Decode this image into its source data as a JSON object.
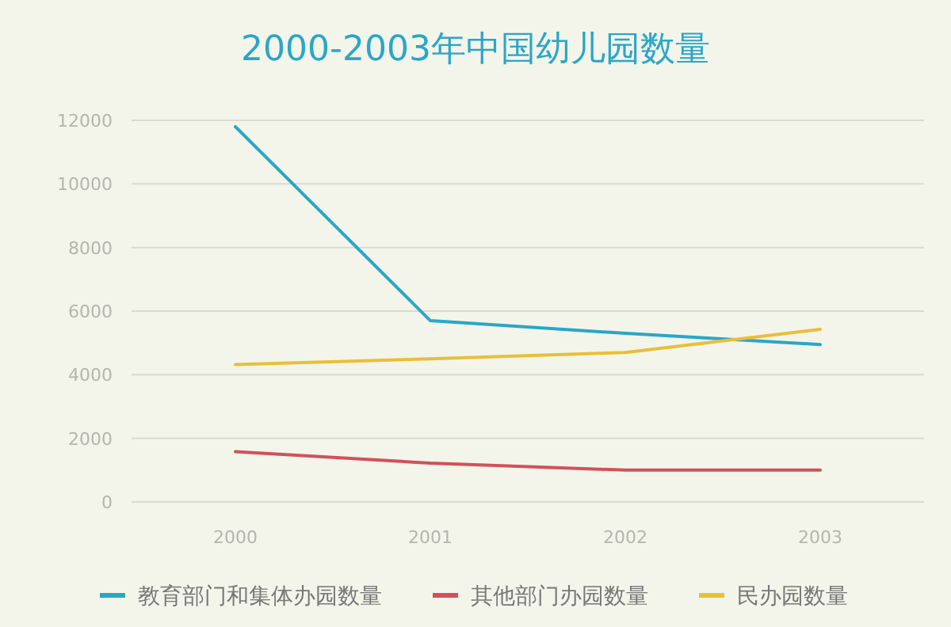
{
  "chart_data": {
    "type": "line",
    "title": "2000-2003年中国幼儿园数量",
    "categories": [
      "2000",
      "2001",
      "2002",
      "2003"
    ],
    "series": [
      {
        "name": "教育部门和集体办园数量",
        "color": "#2aa6c9",
        "values": [
          11800,
          5700,
          5300,
          4950
        ]
      },
      {
        "name": "其他部门办园数量",
        "color": "#d2505a",
        "values": [
          1580,
          1220,
          1000,
          1000
        ]
      },
      {
        "name": "民办园数量",
        "color": "#e8bf3a",
        "values": [
          4320,
          4500,
          4700,
          5430
        ]
      }
    ],
    "ylim": [
      0,
      12000
    ],
    "yticks": [
      0,
      2000,
      4000,
      6000,
      8000,
      10000,
      12000
    ],
    "grid": "y",
    "legend": "bottom",
    "marker": "none",
    "line_style": "solid"
  }
}
